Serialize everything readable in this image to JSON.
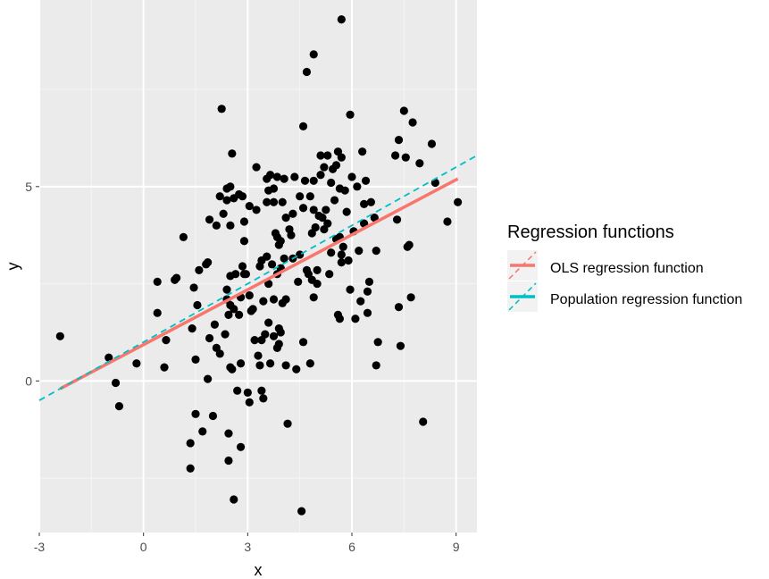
{
  "chart_data": {
    "type": "scatter",
    "title": "",
    "xlabel": "x",
    "ylabel": "y",
    "xlim": [
      -3,
      9.6
    ],
    "ylim": [
      -3.9,
      9.8
    ],
    "x_ticks": [
      -3,
      0,
      3,
      6,
      9
    ],
    "x_tick_labels": [
      "-3",
      "0",
      "3",
      "6",
      "9"
    ],
    "y_ticks": [
      0,
      5
    ],
    "y_tick_labels": [
      "0",
      "5"
    ],
    "grid": true,
    "legend_placement": "right",
    "legend": {
      "title": "Regression functions",
      "entries": [
        {
          "label": "OLS regression function",
          "color": "#F8766D",
          "style": "solid"
        },
        {
          "label": "Population regression function",
          "color": "#00BFC4",
          "style": "dashed"
        }
      ]
    },
    "series": [
      {
        "type": "scatter",
        "color": "#000000",
        "points": [
          [
            -2.4,
            1.15
          ],
          [
            -1.0,
            0.6
          ],
          [
            -0.8,
            -0.05
          ],
          [
            -0.7,
            -0.65
          ],
          [
            -0.2,
            0.45
          ],
          [
            0.4,
            2.55
          ],
          [
            0.4,
            1.75
          ],
          [
            0.6,
            0.35
          ],
          [
            0.65,
            1.05
          ],
          [
            0.9,
            2.6
          ],
          [
            0.95,
            2.65
          ],
          [
            1.15,
            3.7
          ],
          [
            1.35,
            -2.25
          ],
          [
            1.35,
            -1.6
          ],
          [
            1.4,
            1.35
          ],
          [
            1.45,
            2.4
          ],
          [
            1.5,
            0.55
          ],
          [
            1.5,
            -0.85
          ],
          [
            1.55,
            1.95
          ],
          [
            1.6,
            2.85
          ],
          [
            1.7,
            -1.3
          ],
          [
            1.8,
            3.0
          ],
          [
            1.85,
            3.05
          ],
          [
            1.85,
            0.05
          ],
          [
            1.9,
            1.1
          ],
          [
            1.9,
            4.15
          ],
          [
            2.0,
            -0.9
          ],
          [
            2.05,
            1.45
          ],
          [
            2.1,
            0.85
          ],
          [
            2.1,
            4.0
          ],
          [
            2.2,
            4.75
          ],
          [
            2.2,
            0.7
          ],
          [
            2.25,
            7.0
          ],
          [
            2.3,
            4.3
          ],
          [
            2.35,
            1.2
          ],
          [
            2.4,
            2.1
          ],
          [
            2.4,
            2.35
          ],
          [
            2.4,
            4.95
          ],
          [
            2.4,
            4.65
          ],
          [
            2.45,
            1.7
          ],
          [
            2.45,
            -2.05
          ],
          [
            2.45,
            -1.35
          ],
          [
            2.5,
            1.95
          ],
          [
            2.5,
            4.0
          ],
          [
            2.5,
            5.0
          ],
          [
            2.5,
            2.7
          ],
          [
            2.5,
            0.35
          ],
          [
            2.55,
            5.85
          ],
          [
            2.55,
            0.3
          ],
          [
            2.6,
            -3.05
          ],
          [
            2.6,
            1.85
          ],
          [
            2.6,
            4.7
          ],
          [
            2.65,
            2.75
          ],
          [
            2.7,
            -0.25
          ],
          [
            2.75,
            1.7
          ],
          [
            2.75,
            4.8
          ],
          [
            2.8,
            2.15
          ],
          [
            2.8,
            0.45
          ],
          [
            2.8,
            -1.7
          ],
          [
            2.85,
            2.95
          ],
          [
            2.85,
            4.75
          ],
          [
            2.9,
            4.1
          ],
          [
            2.9,
            3.6
          ],
          [
            2.9,
            2.75
          ],
          [
            2.95,
            2.75
          ],
          [
            3.0,
            -0.3
          ],
          [
            3.05,
            4.5
          ],
          [
            3.05,
            -0.55
          ],
          [
            3.05,
            2.2
          ],
          [
            3.1,
            1.8
          ],
          [
            3.15,
            1.85
          ],
          [
            3.2,
            1.05
          ],
          [
            3.25,
            4.4
          ],
          [
            3.25,
            5.5
          ],
          [
            3.3,
            0.65
          ],
          [
            3.35,
            2.95
          ],
          [
            3.35,
            0.4
          ],
          [
            3.4,
            3.1
          ],
          [
            3.4,
            1.05
          ],
          [
            3.4,
            -0.25
          ],
          [
            3.45,
            2.05
          ],
          [
            3.45,
            -0.45
          ],
          [
            3.5,
            1.2
          ],
          [
            3.55,
            4.6
          ],
          [
            3.55,
            5.2
          ],
          [
            3.55,
            3.2
          ],
          [
            3.6,
            4.9
          ],
          [
            3.6,
            2.5
          ],
          [
            3.6,
            1.5
          ],
          [
            3.65,
            5.3
          ],
          [
            3.65,
            0.45
          ],
          [
            3.7,
            3.0
          ],
          [
            3.75,
            4.95
          ],
          [
            3.75,
            1.15
          ],
          [
            3.75,
            4.6
          ],
          [
            3.75,
            2.1
          ],
          [
            3.8,
            3.8
          ],
          [
            3.85,
            3.7
          ],
          [
            3.85,
            5.25
          ],
          [
            3.85,
            2.75
          ],
          [
            3.85,
            0.85
          ],
          [
            3.9,
            3.5
          ],
          [
            3.9,
            1.35
          ],
          [
            3.9,
            0.95
          ],
          [
            3.95,
            1.25
          ],
          [
            3.95,
            3.6
          ],
          [
            3.95,
            2.9
          ],
          [
            4.0,
            2.0
          ],
          [
            4.0,
            4.6
          ],
          [
            4.05,
            5.2
          ],
          [
            4.05,
            3.15
          ],
          [
            4.1,
            2.1
          ],
          [
            4.1,
            4.2
          ],
          [
            4.1,
            0.4
          ],
          [
            4.15,
            -1.1
          ],
          [
            4.2,
            3.9
          ],
          [
            4.25,
            3.75
          ],
          [
            4.3,
            4.3
          ],
          [
            4.3,
            3.15
          ],
          [
            4.35,
            5.25
          ],
          [
            4.4,
            0.3
          ],
          [
            4.45,
            2.55
          ],
          [
            4.5,
            4.75
          ],
          [
            4.5,
            3.25
          ],
          [
            4.55,
            -3.35
          ],
          [
            4.6,
            6.55
          ],
          [
            4.6,
            4.45
          ],
          [
            4.6,
            1.0
          ],
          [
            4.65,
            5.15
          ],
          [
            4.7,
            7.95
          ],
          [
            4.7,
            2.85
          ],
          [
            4.75,
            2.75
          ],
          [
            4.8,
            0.45
          ],
          [
            4.8,
            4.75
          ],
          [
            4.85,
            3.8
          ],
          [
            4.85,
            2.6
          ],
          [
            4.9,
            5.15
          ],
          [
            4.9,
            4.4
          ],
          [
            4.9,
            2.15
          ],
          [
            4.9,
            8.4
          ],
          [
            4.95,
            3.95
          ],
          [
            5.0,
            2.85
          ],
          [
            5.0,
            2.5
          ],
          [
            5.05,
            4.25
          ],
          [
            5.1,
            5.8
          ],
          [
            5.1,
            5.3
          ],
          [
            5.15,
            4.2
          ],
          [
            5.2,
            5.5
          ],
          [
            5.2,
            3.9
          ],
          [
            5.25,
            4.4
          ],
          [
            5.3,
            5.8
          ],
          [
            5.3,
            4.05
          ],
          [
            5.35,
            2.75
          ],
          [
            5.4,
            5.1
          ],
          [
            5.4,
            3.3
          ],
          [
            5.45,
            5.45
          ],
          [
            5.5,
            4.65
          ],
          [
            5.55,
            3.65
          ],
          [
            5.55,
            5.55
          ],
          [
            5.6,
            5.9
          ],
          [
            5.6,
            1.7
          ],
          [
            5.65,
            1.6
          ],
          [
            5.65,
            3.7
          ],
          [
            5.65,
            4.95
          ],
          [
            5.7,
            3.25
          ],
          [
            5.7,
            5.75
          ],
          [
            5.7,
            3.05
          ],
          [
            5.7,
            9.3
          ],
          [
            5.75,
            3.45
          ],
          [
            5.8,
            4.9
          ],
          [
            5.85,
            4.35
          ],
          [
            5.9,
            3.1
          ],
          [
            5.95,
            6.85
          ],
          [
            5.95,
            2.35
          ],
          [
            6.0,
            5.25
          ],
          [
            6.05,
            3.85
          ],
          [
            6.1,
            1.6
          ],
          [
            6.15,
            5.0
          ],
          [
            6.2,
            3.35
          ],
          [
            6.25,
            2.05
          ],
          [
            6.3,
            5.9
          ],
          [
            6.35,
            4.55
          ],
          [
            6.35,
            4.05
          ],
          [
            6.4,
            5.15
          ],
          [
            6.45,
            2.3
          ],
          [
            6.45,
            1.75
          ],
          [
            6.5,
            2.55
          ],
          [
            6.55,
            4.6
          ],
          [
            6.65,
            4.2
          ],
          [
            6.7,
            0.4
          ],
          [
            6.7,
            3.35
          ],
          [
            6.75,
            1.0
          ],
          [
            7.25,
            5.8
          ],
          [
            7.3,
            4.15
          ],
          [
            7.35,
            6.2
          ],
          [
            7.35,
            1.9
          ],
          [
            7.4,
            0.9
          ],
          [
            7.5,
            6.95
          ],
          [
            7.55,
            5.75
          ],
          [
            7.6,
            3.45
          ],
          [
            7.65,
            3.5
          ],
          [
            7.7,
            2.15
          ],
          [
            7.75,
            6.65
          ],
          [
            7.95,
            5.6
          ],
          [
            8.05,
            -1.05
          ],
          [
            8.3,
            6.1
          ],
          [
            8.4,
            5.1
          ],
          [
            8.75,
            4.1
          ],
          [
            9.05,
            4.6
          ]
        ]
      },
      {
        "type": "line",
        "name": "OLS regression function",
        "color": "#F8766D",
        "x": [
          -2.4,
          9.05
        ],
        "y": [
          -0.2,
          5.2
        ]
      },
      {
        "type": "line",
        "name": "Population regression function",
        "color": "#00BFC4",
        "style": "dashed",
        "x": [
          -3,
          9.6
        ],
        "y": [
          -0.5,
          5.8
        ]
      }
    ]
  }
}
